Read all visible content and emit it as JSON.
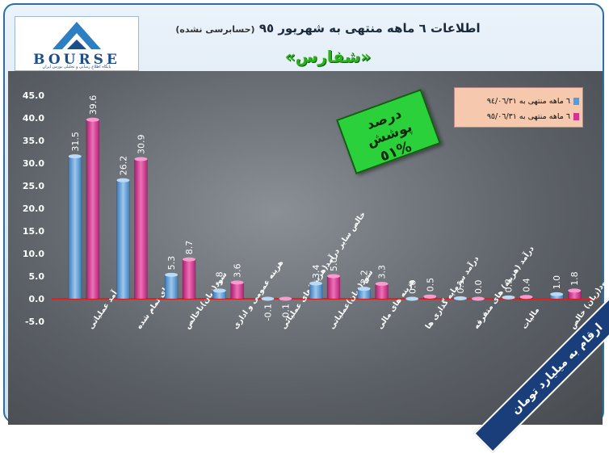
{
  "header": {
    "title": "اطلاعات ٦ ماهه منتهی به شهریور ٩٥",
    "note": "(حسابرسی نشده)",
    "company": "«شفارس»"
  },
  "logo": {
    "text": "BOURSE",
    "subtitle": "پایگاه اطلاع رسانی و تحلیلی بورس ایران"
  },
  "badge": {
    "line1": "درصد پوشش",
    "line2": "%٥١"
  },
  "ribbon": {
    "text": "ارقام به میلیارد تومان"
  },
  "colors": {
    "series1": "#5b9bd5",
    "series2": "#d6338f",
    "zero_line": "#e02020"
  },
  "chart_data": {
    "type": "bar",
    "categories": [
      "درآمد عملیاتی",
      "بهای تمام شده",
      "سود(زیان)ناخالص",
      "هزینه عمومی و اداری",
      "خالص سایر درآمد(هزینه)های عملیاتی",
      "سود(زیان)عملیاتی",
      "هزینه های مالی",
      "درآمد سرمایه گذاری ها",
      "درآمد (هزینه) های متفرقه",
      "مالیات",
      "سود(زیان) خالص"
    ],
    "series": [
      {
        "name": "٦ ماهه منتهی به ٩٤/٠٦/٣١",
        "values": [
          31.5,
          26.2,
          5.3,
          1.8,
          -0.1,
          3.4,
          2.2,
          0.0,
          0.1,
          0.3,
          1.0
        ]
      },
      {
        "name": "٦ ماهه منتهی به ٩٥/٠٦/٣١",
        "values": [
          39.6,
          30.9,
          8.7,
          3.6,
          -0.1,
          5.0,
          3.3,
          0.5,
          0.0,
          0.4,
          1.8
        ]
      }
    ],
    "data_labels": [
      [
        "31.5",
        "26.2",
        "5.3",
        "1.8",
        "-0.1",
        "3.4",
        "2.2",
        "0.0",
        "0.1",
        "0.3",
        "1.0"
      ],
      [
        "39.6",
        "30.9",
        "8.7",
        "3.6",
        "-0.1",
        "5.0",
        "3.3",
        "0.5",
        "0.0",
        "0.4",
        "1.8"
      ]
    ],
    "y_ticks": [
      "-5.0",
      "0.0",
      "5.0",
      "10.0",
      "15.0",
      "20.0",
      "25.0",
      "30.0",
      "35.0",
      "40.0",
      "45.0"
    ],
    "ylim": [
      -5,
      45
    ],
    "legend_position": "top-right"
  }
}
